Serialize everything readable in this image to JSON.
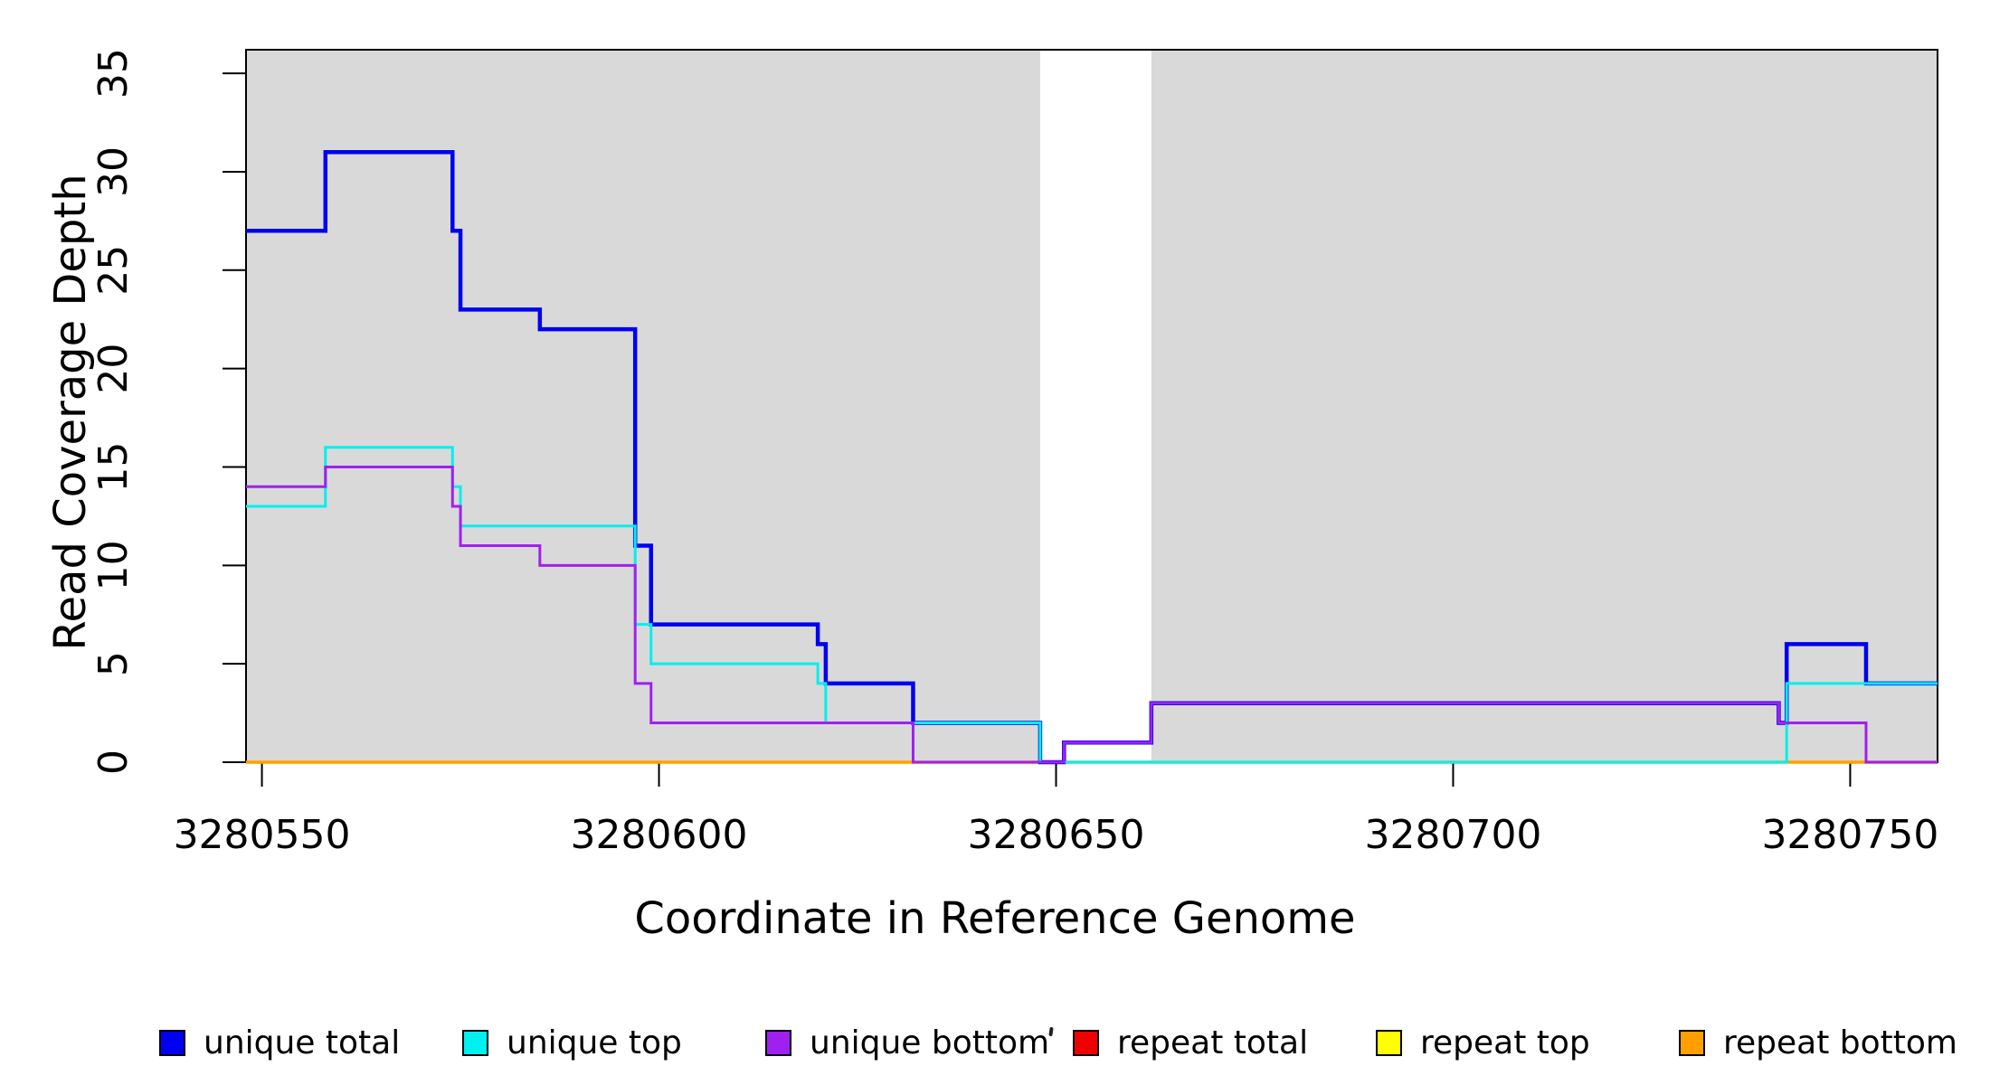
{
  "figure": {
    "background": "#ffffff"
  },
  "chart_data": {
    "type": "line",
    "subtype": "step",
    "title": "",
    "xlabel": "Coordinate in Reference Genome",
    "ylabel": "Read Coverage Depth",
    "xlim": [
      3280548,
      3280761
    ],
    "ylim": [
      0,
      36.2
    ],
    "x_ticks": [
      3280550,
      3280600,
      3280650,
      3280700,
      3280750
    ],
    "y_ticks": [
      0,
      5,
      10,
      15,
      20,
      25,
      30,
      35
    ],
    "grid": false,
    "plot_bg": "#ffffff",
    "box_color": "#000000",
    "shaded_regions": [
      {
        "from": 3280548,
        "to": 3280648,
        "color": "#d9d9d9"
      },
      {
        "from": 3280662,
        "to": 3280761,
        "color": "#d9d9d9"
      }
    ],
    "breakpoints": [
      3280548,
      3280558,
      3280574,
      3280575,
      3280585,
      3280597,
      3280599,
      3280620,
      3280621,
      3280632,
      3280648,
      3280651,
      3280662,
      3280741,
      3280742,
      3280752,
      3280761
    ],
    "series": [
      {
        "name": "unique total",
        "color": "#0000f0",
        "width": 4.5,
        "values": [
          27,
          31,
          27,
          23,
          22,
          11,
          7,
          6,
          4,
          2,
          0,
          1,
          3,
          2,
          6,
          4
        ]
      },
      {
        "name": "unique top",
        "color": "#00efef",
        "width": 3,
        "values": [
          13,
          16,
          14,
          12,
          12,
          7,
          5,
          4,
          2,
          2,
          0,
          0,
          0,
          0,
          4,
          4
        ]
      },
      {
        "name": "unique bottom",
        "color": "#a020f0",
        "width": 3,
        "values": [
          14,
          15,
          13,
          11,
          10,
          4,
          2,
          2,
          2,
          0,
          0,
          1,
          3,
          2,
          2,
          0
        ]
      },
      {
        "name": "repeat total",
        "color": "#ee0000",
        "width": 3,
        "values": [
          0,
          0,
          0,
          0,
          0,
          0,
          0,
          0,
          0,
          0,
          0,
          0,
          0,
          0,
          0,
          0
        ]
      },
      {
        "name": "repeat top",
        "color": "#ffff00",
        "width": 3,
        "values": [
          0,
          0,
          0,
          0,
          0,
          0,
          0,
          0,
          0,
          0,
          0,
          0,
          0,
          0,
          0,
          0
        ]
      },
      {
        "name": "repeat bottom",
        "color": "#ffa000",
        "width": 3.5,
        "values": [
          0,
          0,
          0,
          0,
          0,
          0,
          0,
          0,
          0,
          0,
          0,
          0,
          0,
          0,
          0,
          0
        ]
      }
    ],
    "z_order": [
      3,
      4,
      5,
      0,
      1,
      2
    ],
    "legend": {
      "position": "bottom",
      "entry_lefts": [
        176,
        511,
        846,
        1186,
        1521,
        1856
      ]
    }
  }
}
